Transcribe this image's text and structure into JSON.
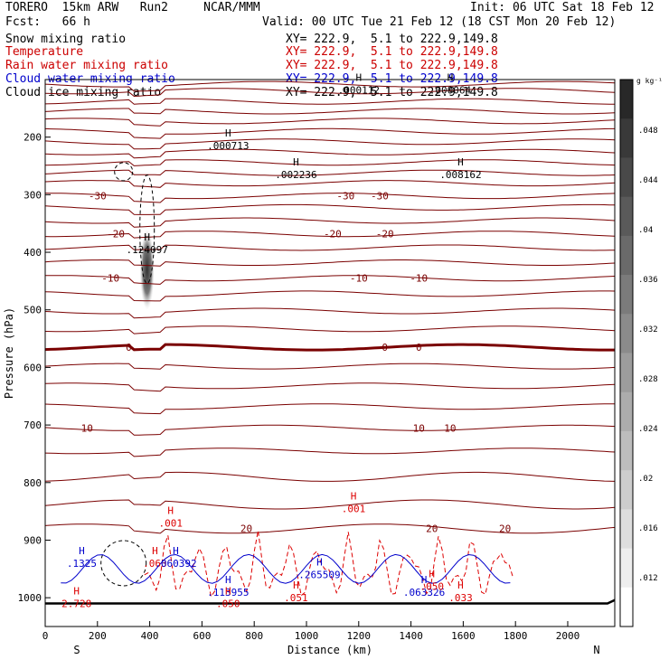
{
  "header": {
    "model": "TORERO  15km ARW   Run2     NCAR/MMM",
    "init": "Init: 06 UTC Sat 18 Feb 12",
    "fcst": "Fcst:   66 h",
    "valid": "Valid: 00 UTC Tue 21 Feb 12 (18 CST Mon 20 Feb 12)"
  },
  "fields": [
    {
      "label": "Snow mixing ratio",
      "xy": "XY= 222.9,  5.1 to 222.9,149.8",
      "color": "#000000"
    },
    {
      "label": "Temperature",
      "xy": "XY= 222.9,  5.1 to 222.9,149.8",
      "color": "#cc0000"
    },
    {
      "label": "Rain water mixing ratio",
      "xy": "XY= 222.9,  5.1 to 222.9,149.8",
      "color": "#cc0000"
    },
    {
      "label": "Cloud water mixing ratio",
      "xy": "XY= 222.9,  5.1 to 222.9,149.8",
      "color": "#0000cc"
    },
    {
      "label": "Cloud ice mixing ratio",
      "xy": "XY= 222.9,  5.1 to 222.9,149.8",
      "color": "#000000"
    }
  ],
  "colors": {
    "temperature": "#7a0000",
    "rain": "#dd0000",
    "cloud_water": "#0000cc",
    "ice": "#000000"
  },
  "chart_data": {
    "type": "cross-section",
    "xlabel": "Distance (km)",
    "ylabel": "Pressure (hPa)",
    "xlim": [
      0,
      2180
    ],
    "ylim": [
      1050,
      100
    ],
    "x_ticks": [
      0,
      200,
      400,
      600,
      800,
      1000,
      1200,
      1400,
      1600,
      1800,
      2000
    ],
    "y_ticks": [
      200,
      300,
      400,
      500,
      600,
      700,
      800,
      900,
      1000
    ],
    "endpoints": {
      "left": "S",
      "right": "N"
    },
    "colorbar": {
      "unit": "g kg⁻¹",
      "ticks": [
        ".012",
        ".016",
        ".02",
        ".024",
        ".028",
        ".032",
        ".036",
        ".04",
        ".044",
        ".048"
      ],
      "levels": 14
    },
    "temperature_contours": [
      {
        "p": 108,
        "label": null
      },
      {
        "p": 120,
        "label": null
      },
      {
        "p": 138,
        "label": null
      },
      {
        "p": 155,
        "label": null
      },
      {
        "p": 172,
        "label": null
      },
      {
        "p": 190,
        "label": null
      },
      {
        "p": 208,
        "label": null
      },
      {
        "p": 226,
        "label": null
      },
      {
        "p": 244,
        "label": null
      },
      {
        "p": 262,
        "label": null
      },
      {
        "p": 280,
        "label": null
      },
      {
        "p": 302,
        "label": "-30"
      },
      {
        "p": 322,
        "label": null
      },
      {
        "p": 345,
        "label": null
      },
      {
        "p": 368,
        "label": "-20"
      },
      {
        "p": 392,
        "label": null
      },
      {
        "p": 418,
        "label": null
      },
      {
        "p": 445,
        "label": "-10"
      },
      {
        "p": 472,
        "label": null
      },
      {
        "p": 502,
        "label": null
      },
      {
        "p": 533,
        "label": null
      },
      {
        "p": 565,
        "label": "0",
        "bold": true
      },
      {
        "p": 598,
        "label": null
      },
      {
        "p": 632,
        "label": null
      },
      {
        "p": 668,
        "label": null
      },
      {
        "p": 705,
        "label": "10"
      },
      {
        "p": 745,
        "label": null
      },
      {
        "p": 790,
        "label": null
      },
      {
        "p": 838,
        "label": null
      },
      {
        "p": 880,
        "label": "20"
      }
    ],
    "label_positions": [
      {
        "text": "-30",
        "x": [
          200,
          1150,
          1280
        ]
      },
      {
        "text": "-20",
        "x": [
          270,
          1100,
          1300
        ]
      },
      {
        "text": "-10",
        "x": [
          250,
          1200,
          1430
        ]
      },
      {
        "text": "0",
        "x": [
          320,
          1300,
          1430
        ]
      },
      {
        "text": "10",
        "x": [
          160,
          1430,
          1550
        ]
      },
      {
        "text": "20",
        "x": [
          770,
          1480
        ]
      },
      {
        "text": "20",
        "x": [
          1760
        ]
      }
    ],
    "maxima": [
      {
        "text": ".000713",
        "x": 700,
        "p": 215
      },
      {
        "text": ".002236",
        "x": 960,
        "p": 265
      },
      {
        "text": ".008162",
        "x": 1590,
        "p": 265
      },
      {
        "text": ".124097",
        "x": 390,
        "p": 395
      },
      {
        "text": ".000112",
        "x": 1200,
        "p": 118
      },
      {
        "text": ".000064",
        "x": 1550,
        "p": 118
      },
      {
        "text": ".001",
        "x": 480,
        "p": 870
      },
      {
        "text": ".001",
        "x": 1180,
        "p": 845
      },
      {
        "text": ".1325",
        "x": 140,
        "p": 940
      },
      {
        "text": ".063",
        "x": 420,
        "p": 940
      },
      {
        "text": ".060392",
        "x": 500,
        "p": 940
      },
      {
        "text": ".113955",
        "x": 700,
        "p": 990
      },
      {
        "text": ".265509",
        "x": 1050,
        "p": 960
      },
      {
        "text": ".063326",
        "x": 1450,
        "p": 990
      },
      {
        "text": ".051",
        "x": 960,
        "p": 1000
      },
      {
        "text": ".050",
        "x": 1480,
        "p": 980
      },
      {
        "text": ".050",
        "x": 700,
        "p": 1010
      },
      {
        "text": ".033",
        "x": 1590,
        "p": 1000
      },
      {
        "text": "2.728",
        "x": 120,
        "p": 1010
      }
    ]
  }
}
